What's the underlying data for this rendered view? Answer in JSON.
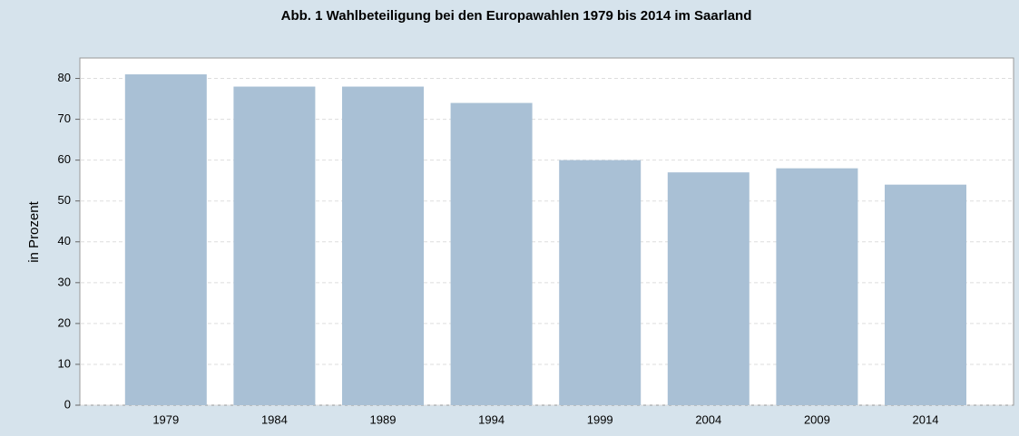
{
  "chart_data": {
    "type": "bar",
    "title": "Abb. 1 Wahlbeteiligung bei den Europawahlen 1979 bis 2014 im Saarland",
    "y_label": "in Prozent",
    "categories": [
      "1979",
      "1984",
      "1989",
      "1994",
      "1999",
      "2004",
      "2009",
      "2014"
    ],
    "values": [
      81,
      78,
      78,
      74,
      60,
      57,
      58,
      54
    ],
    "color": "#a9c0d5",
    "ylim": [
      0,
      85
    ],
    "yticks": [
      0,
      10,
      20,
      30,
      40,
      50,
      60,
      70,
      80
    ],
    "grid": true
  }
}
